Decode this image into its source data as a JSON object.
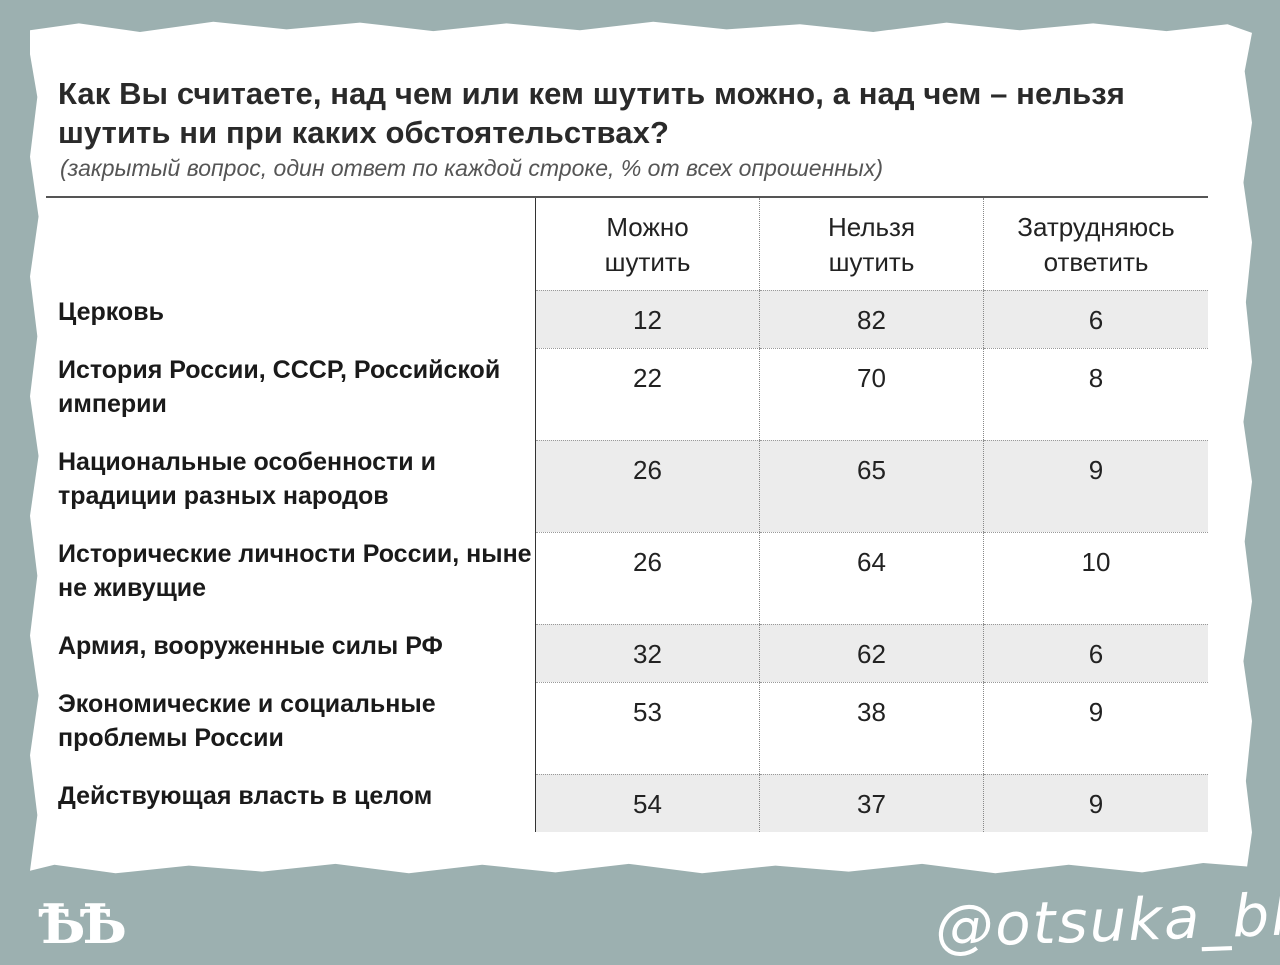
{
  "chart_data": {
    "type": "table",
    "title": "Как Вы считаете, над чем или кем шутить можно, а над чем – нельзя шутить ни при каких обстоятельствах?",
    "subtitle": "(закрытый вопрос, один ответ по каждой строке, % от всех опрошенных)",
    "columns": [
      [
        "Можно",
        "шутить"
      ],
      [
        "Нельзя",
        "шутить"
      ],
      [
        "Затрудняюсь",
        "ответить"
      ]
    ],
    "rows": [
      {
        "label": "Церковь",
        "values": [
          "12",
          "82",
          "6"
        ]
      },
      {
        "label": "История России, СССР, Российской империи",
        "values": [
          "22",
          "70",
          "8"
        ]
      },
      {
        "label": "Национальные особенности и традиции разных народов",
        "values": [
          "26",
          "65",
          "9"
        ]
      },
      {
        "label": "Исторические личности России, ныне не живущие",
        "values": [
          "26",
          "64",
          "10"
        ]
      },
      {
        "label": "Армия, вооруженные силы РФ",
        "values": [
          "32",
          "62",
          "6"
        ]
      },
      {
        "label": "Экономические и социальные проблемы России",
        "values": [
          "53",
          "38",
          "9"
        ]
      },
      {
        "label": "Действующая власть в целом",
        "values": [
          "54",
          "37",
          "9"
        ]
      }
    ],
    "unit": "%"
  },
  "footer": {
    "seal_text": "ѢѢ",
    "signature_text": "@otsuka_bld"
  },
  "colors": {
    "background": "#9cb0b0",
    "paper": "#ffffff",
    "shade": "#ececec"
  }
}
